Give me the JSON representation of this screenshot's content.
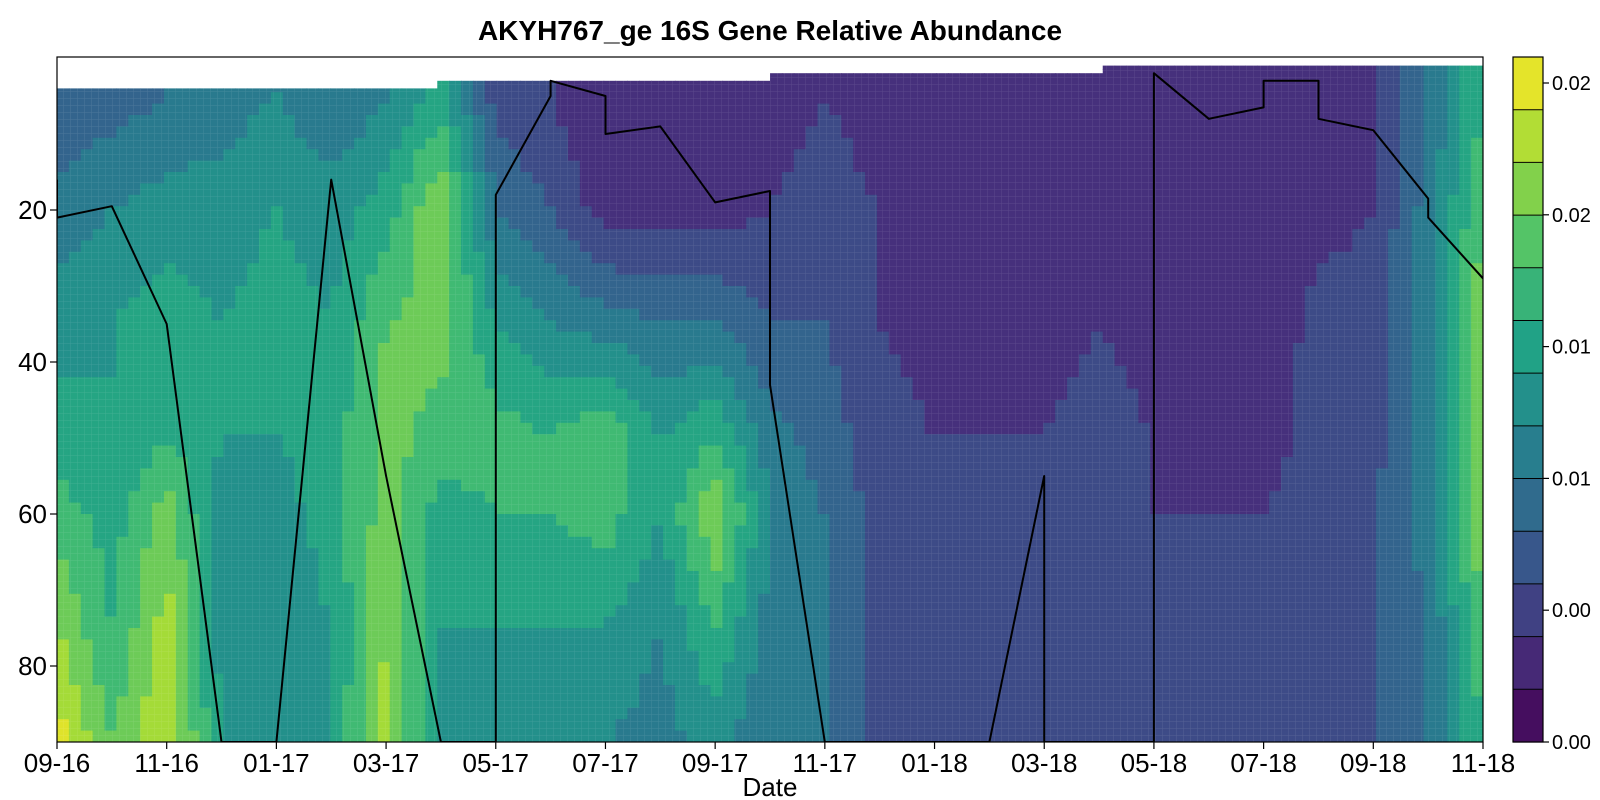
{
  "chart_data": {
    "type": "heatmap",
    "title": "AKYH767_ge 16S Gene Relative Abundance",
    "xlabel": "Date",
    "ylabel": "",
    "x_ticks": [
      "09-16",
      "11-16",
      "01-17",
      "03-17",
      "05-17",
      "07-17",
      "09-17",
      "11-17",
      "01-18",
      "03-18",
      "05-18",
      "07-18",
      "09-18",
      "11-18"
    ],
    "y_ticks": [
      20,
      40,
      60,
      80
    ],
    "y_range": [
      0,
      90
    ],
    "y_inverted": true,
    "colorbar_ticks": [
      "0.00",
      "0.00",
      "0.01",
      "0.01",
      "0.02",
      "0.02"
    ],
    "colorbar_range": [
      0.0,
      0.022
    ],
    "colormap": [
      "#440154",
      "#46327e",
      "#365c8d",
      "#277f8e",
      "#1fa187",
      "#4ac16d",
      "#a0da39",
      "#fde725"
    ],
    "columns": [
      {
        "date": "09-16",
        "profile": [
          0.006,
          0.009,
          0.011,
          0.013,
          0.015,
          0.018,
          0.021
        ]
      },
      {
        "date": "10-16",
        "profile": [
          0.007,
          0.01,
          0.012,
          0.012,
          0.013,
          0.014,
          0.016
        ]
      },
      {
        "date": "11-16",
        "profile": [
          0.008,
          0.011,
          0.013,
          0.014,
          0.017,
          0.019,
          0.02
        ]
      },
      {
        "date": "12-16",
        "profile": [
          0.009,
          0.011,
          0.012,
          0.012,
          0.011,
          0.011,
          0.012
        ]
      },
      {
        "date": "01-17",
        "profile": [
          0.01,
          0.012,
          0.013,
          0.012,
          0.011,
          0.01,
          0.011
        ]
      },
      {
        "date": "02-17",
        "profile": [
          0.008,
          0.011,
          0.012,
          0.013,
          0.013,
          0.012,
          0.012
        ]
      },
      {
        "date": "03-17",
        "profile": [
          0.01,
          0.013,
          0.016,
          0.017,
          0.017,
          0.018,
          0.019
        ]
      },
      {
        "date": "04-17",
        "profile": [
          0.013,
          0.018,
          0.017,
          0.015,
          0.013,
          0.012,
          0.011
        ]
      },
      {
        "date": "05-17",
        "profile": [
          0.005,
          0.008,
          0.012,
          0.015,
          0.014,
          0.012,
          0.011
        ]
      },
      {
        "date": "06-17",
        "profile": [
          0.004,
          0.006,
          0.01,
          0.014,
          0.014,
          0.012,
          0.01
        ]
      },
      {
        "date": "07-17",
        "profile": [
          0.002,
          0.003,
          0.009,
          0.016,
          0.015,
          0.012,
          0.01
        ]
      },
      {
        "date": "08-17",
        "profile": [
          0.002,
          0.003,
          0.008,
          0.012,
          0.012,
          0.01,
          0.009
        ]
      },
      {
        "date": "09-17",
        "profile": [
          0.002,
          0.003,
          0.008,
          0.014,
          0.018,
          0.014,
          0.011
        ]
      },
      {
        "date": "10-17",
        "profile": [
          0.003,
          0.004,
          0.006,
          0.009,
          0.01,
          0.009,
          0.008
        ]
      },
      {
        "date": "11-17",
        "profile": [
          0.004,
          0.005,
          0.006,
          0.007,
          0.008,
          0.008,
          0.008
        ]
      },
      {
        "date": "12-17",
        "profile": [
          0.003,
          0.004,
          0.004,
          0.005,
          0.005,
          0.005,
          0.005
        ]
      },
      {
        "date": "01-18",
        "profile": [
          0.002,
          0.002,
          0.003,
          0.004,
          0.004,
          0.004,
          0.004
        ]
      },
      {
        "date": "02-18",
        "profile": [
          0.002,
          0.002,
          0.003,
          0.004,
          0.004,
          0.004,
          0.004
        ]
      },
      {
        "date": "03-18",
        "profile": [
          0.002,
          0.002,
          0.003,
          0.004,
          0.004,
          0.004,
          0.004
        ]
      },
      {
        "date": "04-18",
        "profile": [
          0.003,
          0.004,
          0.004,
          0.005,
          0.005,
          0.005,
          0.005
        ]
      },
      {
        "date": "05-18",
        "profile": [
          0.002,
          0.002,
          0.003,
          0.004,
          0.004,
          0.004,
          0.004
        ]
      },
      {
        "date": "06-18",
        "profile": [
          0.002,
          0.002,
          0.002,
          0.003,
          0.004,
          0.004,
          0.004
        ]
      },
      {
        "date": "07-18",
        "profile": [
          0.002,
          0.002,
          0.002,
          0.003,
          0.004,
          0.004,
          0.004
        ]
      },
      {
        "date": "08-18",
        "profile": [
          0.002,
          0.003,
          0.005,
          0.005,
          0.005,
          0.005,
          0.005
        ]
      },
      {
        "date": "09-18",
        "profile": [
          0.004,
          0.004,
          0.005,
          0.005,
          0.006,
          0.006,
          0.006
        ]
      },
      {
        "date": "10-18",
        "profile": [
          0.008,
          0.009,
          0.009,
          0.009,
          0.009,
          0.008,
          0.008
        ]
      },
      {
        "date": "11-18",
        "profile": [
          0.014,
          0.016,
          0.018,
          0.019,
          0.018,
          0.016,
          0.014
        ]
      }
    ],
    "profile_depths": [
      5,
      20,
      35,
      50,
      60,
      75,
      90
    ],
    "top_depths": [
      {
        "from": "09-16",
        "depth": 4
      },
      {
        "from": "04-17",
        "depth": 3
      },
      {
        "from": "10-17",
        "depth": 2
      },
      {
        "from": "04-18",
        "depth": 1
      }
    ],
    "line": {
      "dates": [
        "09-16",
        "09-16",
        "10-16",
        "11-16",
        "11-16",
        "12-16",
        "01-17",
        "02-17",
        "03-17",
        "03-17",
        "04-17",
        "05-17",
        "05-17",
        "06-17",
        "06-17",
        "06-17",
        "07-17",
        "07-17",
        "08-17",
        "09-17",
        "10-17",
        "10-17",
        "11-17",
        "11-17",
        "12-17",
        "02-18",
        "03-18",
        "03-18",
        "04-18",
        "05-18",
        "05-18",
        "06-18",
        "07-18",
        "07-18",
        "08-18",
        "08-18",
        "09-18",
        "10-18",
        "10-18",
        "11-18"
      ],
      "depth": [
        16,
        21,
        19.5,
        35,
        35,
        90,
        90,
        16,
        55,
        55,
        90,
        90,
        18,
        5,
        5,
        3,
        5,
        10,
        9,
        19,
        17.5,
        43,
        90,
        90,
        90,
        90,
        55,
        90,
        90,
        90,
        2,
        8,
        6.5,
        3,
        3,
        8,
        9.5,
        18.5,
        21,
        29
      ]
    }
  }
}
